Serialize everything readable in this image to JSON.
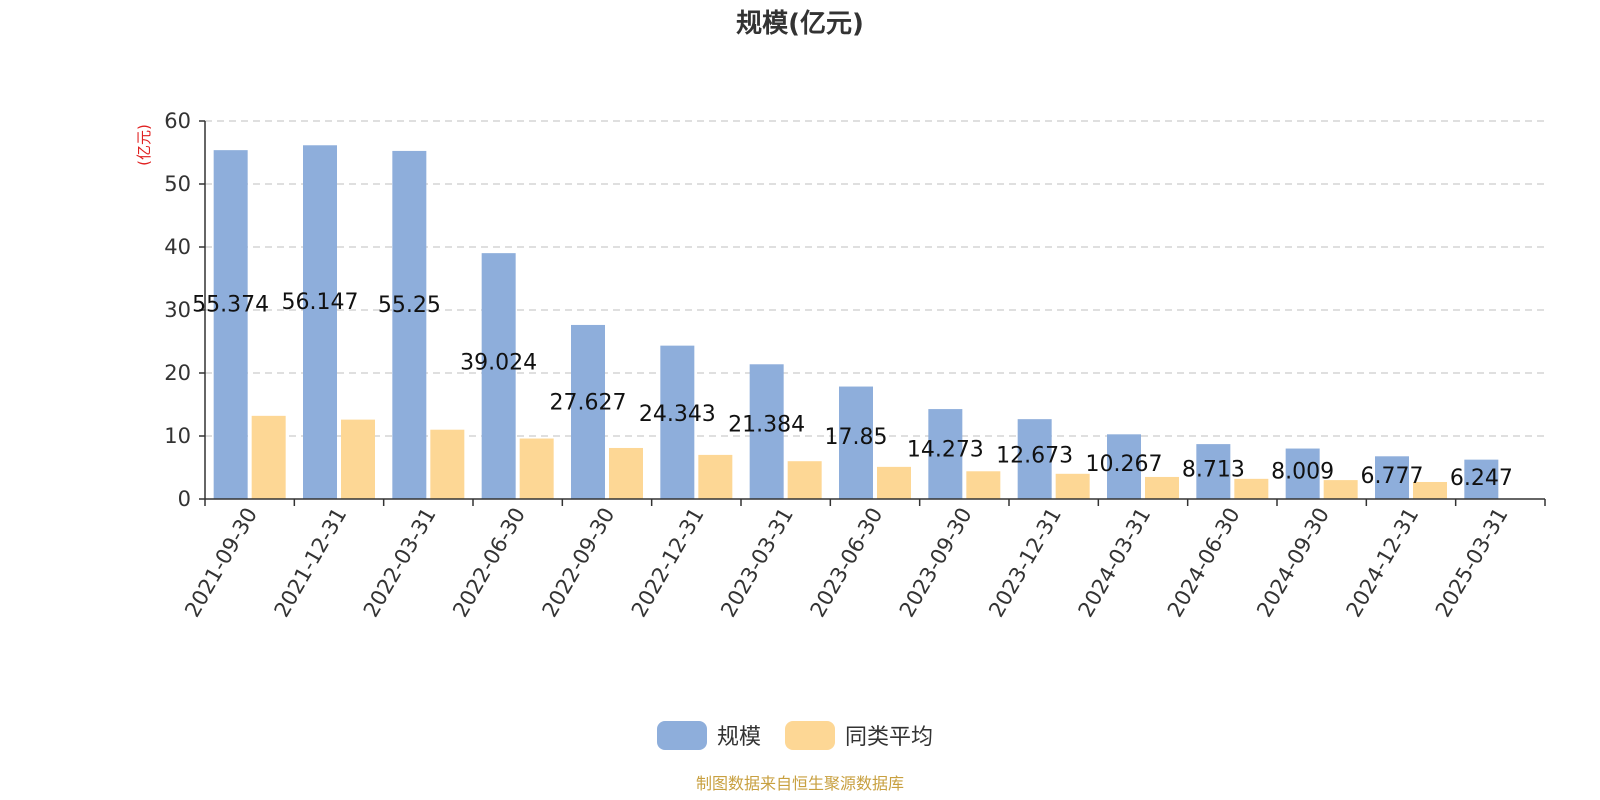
{
  "chart_data": {
    "type": "bar",
    "title": "规模(亿元)",
    "ylabel": "(亿元)",
    "xlabel": "",
    "ylim": [
      0,
      60
    ],
    "yticks": [
      0,
      10,
      20,
      30,
      40,
      50,
      60
    ],
    "grid": true,
    "legend_position": "bottom",
    "categories": [
      "2021-09-30",
      "2021-12-31",
      "2022-03-31",
      "2022-06-30",
      "2022-09-30",
      "2022-12-31",
      "2023-03-31",
      "2023-06-30",
      "2023-09-30",
      "2023-12-31",
      "2024-03-31",
      "2024-06-30",
      "2024-09-30",
      "2024-12-31",
      "2025-03-31"
    ],
    "series": [
      {
        "name": "规模",
        "color": "#8eaedb",
        "values": [
          55.374,
          56.147,
          55.25,
          39.024,
          27.627,
          24.343,
          21.384,
          17.85,
          14.273,
          12.673,
          10.267,
          8.713,
          8.009,
          6.777,
          6.247
        ],
        "labels": [
          "55.374",
          "56.147",
          "55.25",
          "39.024",
          "27.627",
          "24.343",
          "21.384",
          "17.85",
          "14.273",
          "12.673",
          "10.267",
          "8.713",
          "8.009",
          "6.777",
          "6.247"
        ]
      },
      {
        "name": "同类平均",
        "color": "#fdd795",
        "values": [
          13.2,
          12.6,
          11.0,
          9.6,
          8.1,
          7.0,
          6.0,
          5.1,
          4.4,
          4.0,
          3.5,
          3.2,
          3.0,
          2.7,
          null
        ]
      }
    ]
  },
  "source_note": "制图数据来自恒生聚源数据库"
}
